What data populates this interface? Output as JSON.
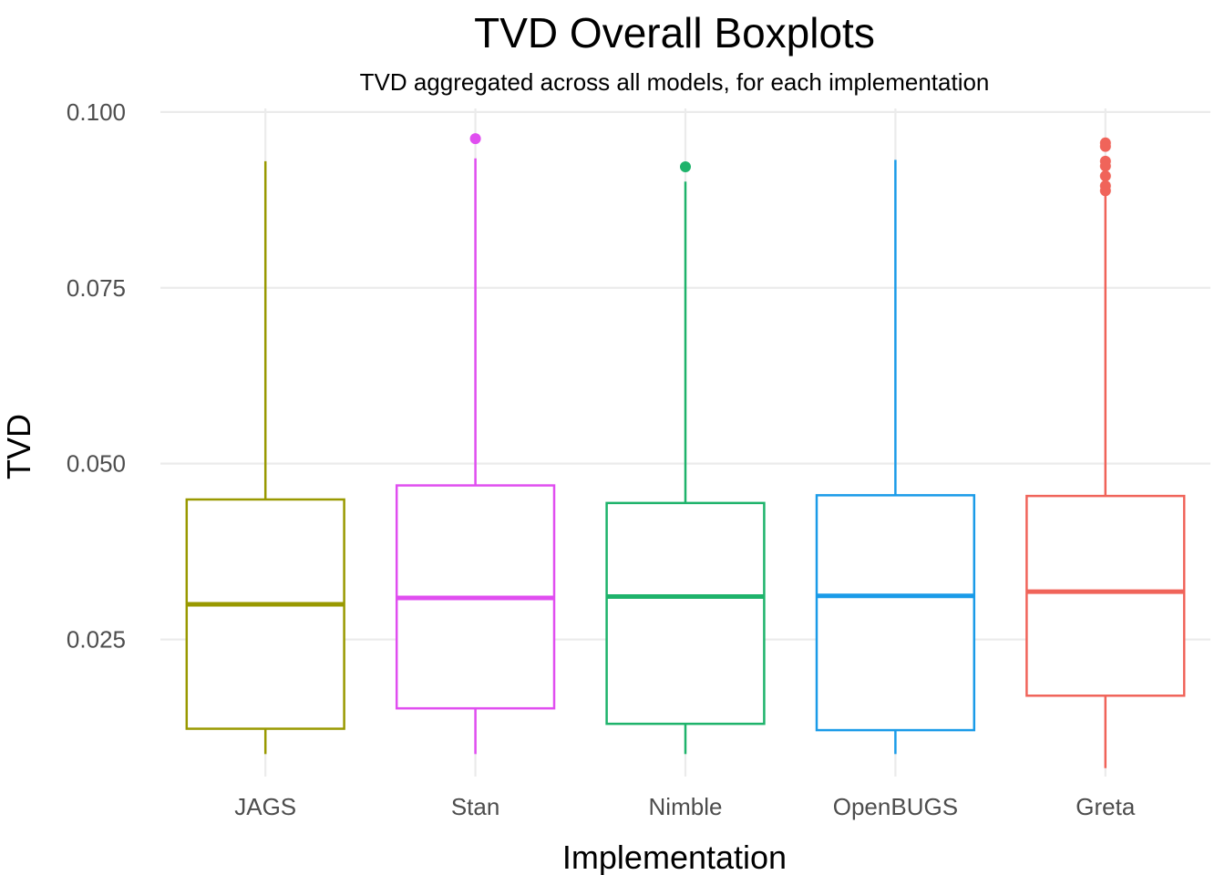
{
  "chart_data": {
    "type": "boxplot",
    "title": "TVD Overall Boxplots",
    "subtitle": "TVD aggregated across all models, for each implementation",
    "xlabel": "Implementation",
    "ylabel": "TVD",
    "ylim": [
      0.0055,
      0.1005
    ],
    "yticks": [
      0.025,
      0.05,
      0.075,
      0.1
    ],
    "ytick_labels": [
      "0.025",
      "0.050",
      "0.075",
      "0.100"
    ],
    "grid": true,
    "legend": "none",
    "categories": [
      "JAGS",
      "Stan",
      "Nimble",
      "OpenBUGS",
      "Greta"
    ],
    "series": [
      {
        "category": "JAGS",
        "color": "#999900",
        "whisker_low": 0.0087,
        "q1": 0.0123,
        "median": 0.03,
        "q3": 0.0449,
        "whisker_high": 0.093,
        "outliers": []
      },
      {
        "category": "Stan",
        "color": "#e04ef0",
        "whisker_low": 0.0087,
        "q1": 0.0152,
        "median": 0.0309,
        "q3": 0.0469,
        "whisker_high": 0.0934,
        "outliers": [
          0.0962
        ]
      },
      {
        "category": "Nimble",
        "color": "#1eb36b",
        "whisker_low": 0.0087,
        "q1": 0.013,
        "median": 0.0311,
        "q3": 0.0444,
        "whisker_high": 0.0901,
        "outliers": [
          0.0922
        ]
      },
      {
        "category": "OpenBUGS",
        "color": "#1a9be8",
        "whisker_low": 0.0087,
        "q1": 0.0121,
        "median": 0.0312,
        "q3": 0.0455,
        "whisker_high": 0.0932,
        "outliers": []
      },
      {
        "category": "Greta",
        "color": "#f0645a",
        "whisker_low": 0.0067,
        "q1": 0.017,
        "median": 0.0318,
        "q3": 0.0454,
        "whisker_high": 0.0886,
        "outliers": [
          0.0888,
          0.0895,
          0.0909,
          0.0923,
          0.093,
          0.0951,
          0.0956
        ]
      }
    ]
  }
}
